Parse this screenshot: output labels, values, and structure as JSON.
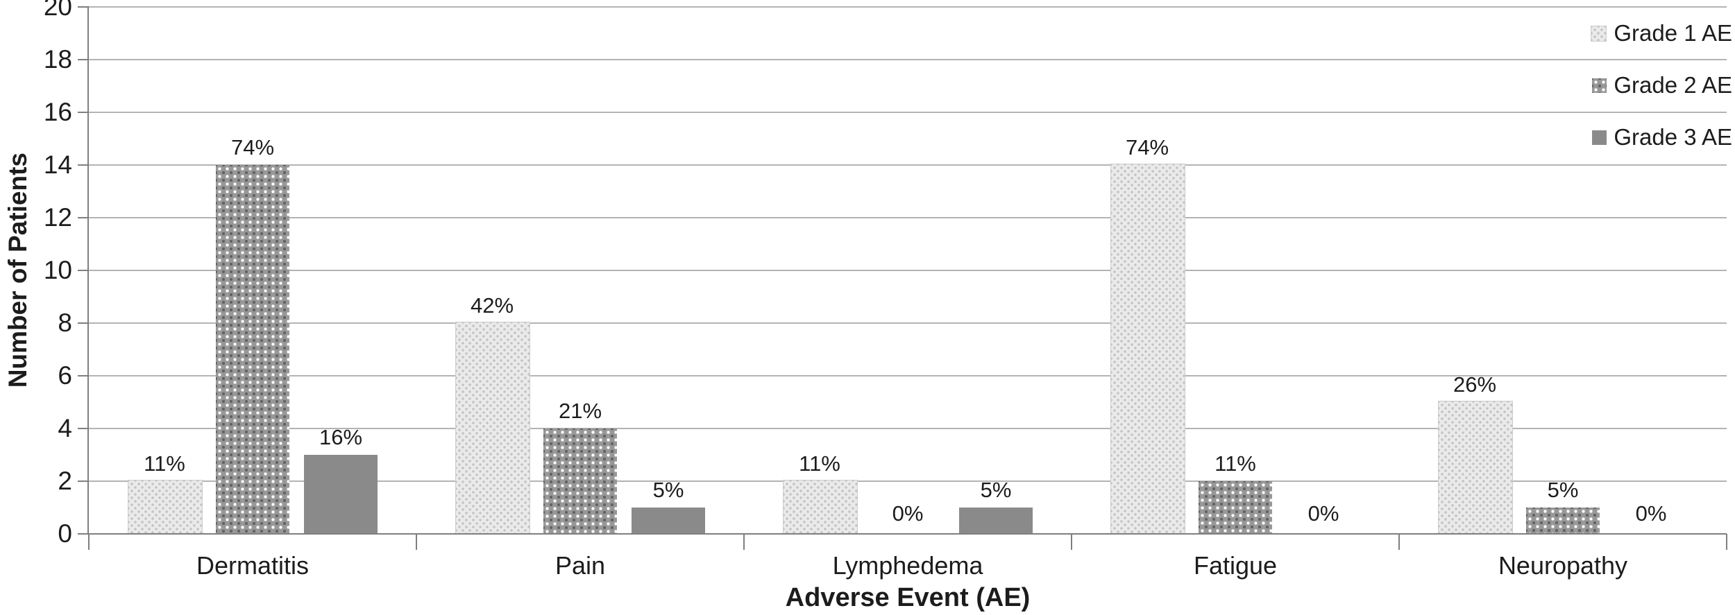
{
  "chart_data": {
    "type": "bar",
    "title": "",
    "xlabel": "Adverse Event (AE)",
    "ylabel": "Number of Patients",
    "ylim": [
      0,
      20
    ],
    "ytick_step": 2,
    "yticks": [
      0,
      2,
      4,
      6,
      8,
      10,
      12,
      14,
      16,
      18,
      20
    ],
    "grid": true,
    "legend_position": "top-right",
    "categories": [
      "Dermatitis",
      "Pain",
      "Lymphedema",
      "Fatigue",
      "Neuropathy"
    ],
    "series": [
      {
        "name": "Grade 1 AE",
        "pattern": "light-dots",
        "values": [
          2,
          8,
          2,
          14,
          5
        ],
        "labels": [
          "11%",
          "42%",
          "11%",
          "74%",
          "26%"
        ]
      },
      {
        "name": "Grade 2 AE",
        "pattern": "dark-weave",
        "values": [
          14,
          4,
          0,
          2,
          1
        ],
        "labels": [
          "74%",
          "21%",
          "0%",
          "11%",
          "5%"
        ]
      },
      {
        "name": "Grade 3 AE",
        "pattern": "solid-gray",
        "values": [
          3,
          1,
          1,
          0,
          0
        ],
        "labels": [
          "16%",
          "5%",
          "5%",
          "0%",
          "0%"
        ]
      }
    ]
  },
  "colors": {
    "grade1_fill": "#eaeaea",
    "grade1_dot": "#c2c2c2",
    "grade2_base": "#989898",
    "grade2_dot_light": "#ffffff",
    "grade2_dot_dark": "#636363",
    "grade3_fill": "#8a8a8a",
    "gridline": "#b3b3b3",
    "axis": "#7f7f7f",
    "text": "#1c1c1c",
    "background": "#ffffff"
  }
}
